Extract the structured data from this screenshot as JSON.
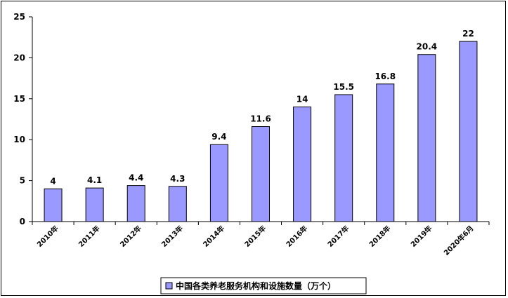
{
  "chart_data": {
    "type": "bar",
    "categories": [
      "2010年",
      "2011年",
      "2012年",
      "2013年",
      "2014年",
      "2015年",
      "2016年",
      "2017年",
      "2018年",
      "2019年",
      "2020年6月"
    ],
    "series": [
      {
        "name": "中国各类养老服务机构和设施数量（万个）",
        "values": [
          4,
          4.1,
          4.4,
          4.3,
          9.4,
          11.6,
          14,
          15.5,
          16.8,
          20.4,
          22
        ]
      }
    ],
    "data_labels": [
      "4",
      "4.1",
      "4.4",
      "4.3",
      "9.4",
      "11.6",
      "14",
      "15.5",
      "16.8",
      "20.4",
      "22"
    ],
    "ylim": [
      0,
      25
    ],
    "yticks": [
      0,
      5,
      10,
      15,
      20,
      25
    ],
    "legend_position": "bottom",
    "grid": false,
    "colors": {
      "bar_fill": "#9999ff",
      "bar_stroke": "#000000"
    }
  }
}
